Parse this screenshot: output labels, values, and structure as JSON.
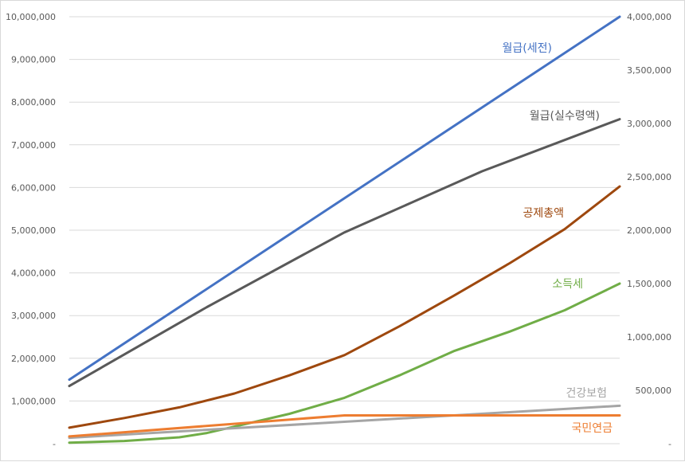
{
  "chart_data": {
    "type": "line",
    "title": "",
    "xlabel": "",
    "ylabel": "",
    "grid": true,
    "legend": "inline labels at line ends",
    "y_left": {
      "range": [
        0,
        10000000
      ],
      "ticks": [
        "-",
        "1,000,000",
        "2,000,000",
        "3,000,000",
        "4,000,000",
        "5,000,000",
        "6,000,000",
        "7,000,000",
        "8,000,000",
        "9,000,000",
        "10,000,000"
      ]
    },
    "y_right": {
      "range": [
        0,
        4000000
      ],
      "ticks": [
        "-",
        "500,000",
        "1,000,000",
        "1,500,000",
        "2,000,000",
        "2,500,000",
        "3,000,000",
        "3,500,000",
        "4,000,000"
      ]
    },
    "series": [
      {
        "name": "월급(세전)",
        "color": "#4472C4",
        "axis": "left",
        "x": [
          0,
          1
        ],
        "values": [
          1500000,
          10000000
        ]
      },
      {
        "name": "월급(실수령액)",
        "color": "#595959",
        "axis": "left",
        "x": [
          0,
          0.25,
          0.5,
          0.75,
          1
        ],
        "values": [
          1350000,
          3200000,
          4950000,
          6380000,
          7600000
        ]
      },
      {
        "name": "공제총액",
        "color": "#9E480E",
        "axis": "right",
        "x": [
          0,
          0.1,
          0.2,
          0.3,
          0.4,
          0.5,
          0.6,
          0.7,
          0.8,
          0.9,
          1
        ],
        "values": [
          150000,
          240000,
          340000,
          470000,
          640000,
          830000,
          1100000,
          1390000,
          1690000,
          2010000,
          2410000
        ]
      },
      {
        "name": "소득세",
        "color": "#70AD47",
        "axis": "right",
        "x": [
          0,
          0.1,
          0.2,
          0.25,
          0.3,
          0.4,
          0.5,
          0.6,
          0.7,
          0.8,
          0.9,
          1
        ],
        "values": [
          10000,
          25000,
          60000,
          100000,
          160000,
          280000,
          430000,
          640000,
          870000,
          1050000,
          1250000,
          1500000
        ]
      },
      {
        "name": "건강보험",
        "color": "#A5A5A5",
        "axis": "right",
        "x": [
          0,
          1
        ],
        "values": [
          55000,
          355000
        ]
      },
      {
        "name": "국민연금",
        "color": "#ED7D31",
        "axis": "right",
        "x": [
          0,
          0.5,
          1
        ],
        "values": [
          68000,
          265000,
          265000
        ]
      }
    ]
  }
}
